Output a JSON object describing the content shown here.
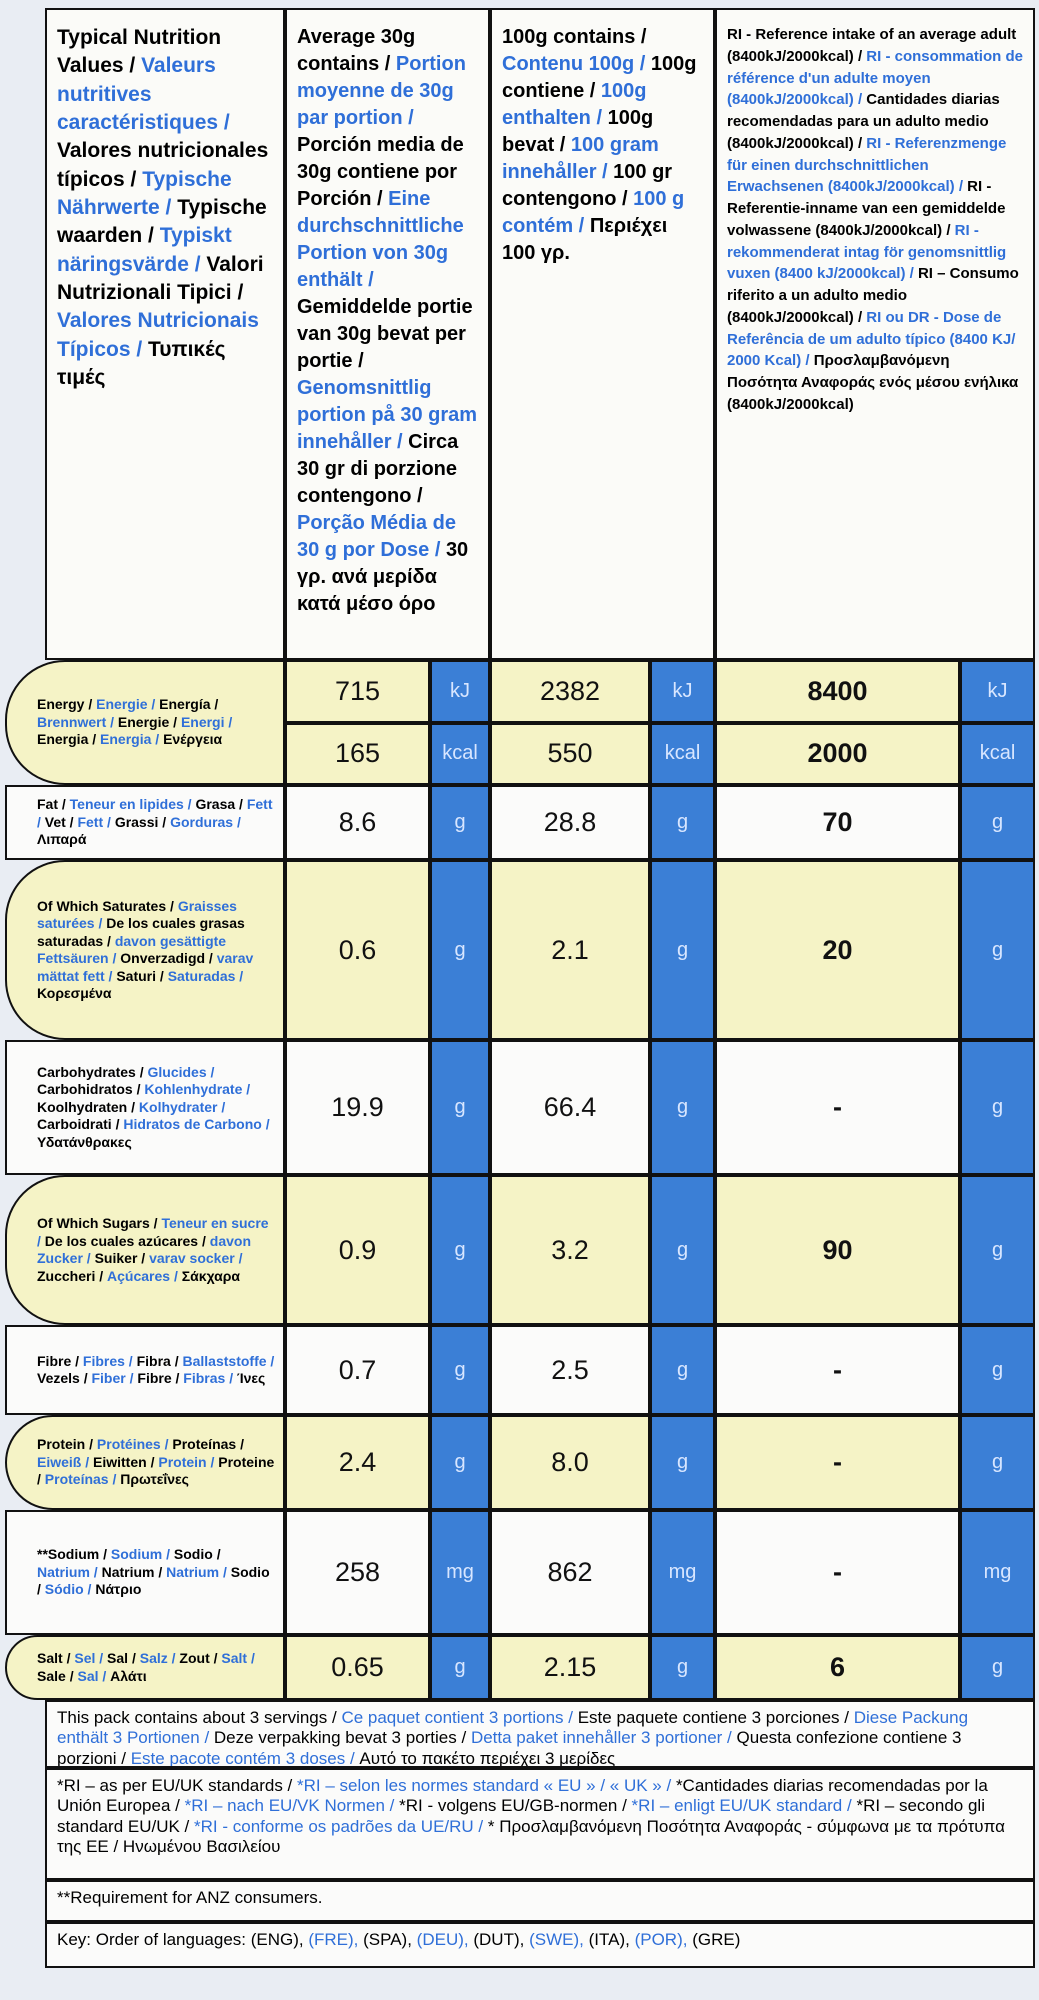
{
  "header": {
    "columns": [
      [
        "Typical Nutrition Values /",
        "Valeurs nutritives caractéristiques /",
        "Valores nutricionales típicos /",
        "Typische Nährwerte /",
        "Typische waarden /",
        "Typiskt näringsvärde /",
        "Valori Nutrizionali Tipici /",
        "Valores Nutricionais Típicos /",
        "Τυπικές τιμές"
      ],
      [
        "Average 30g contains /",
        "Portion moyenne de 30g par portion /",
        "Porción media de 30g contiene por Porción /",
        "Eine durchschnittliche Portion von 30g enthält /",
        "Gemiddelde portie van 30g bevat per portie /",
        "Genomsnittlig portion på 30 gram innehåller /",
        "Circa 30 gr di porzione contengono /",
        "Porção Média de 30 g por Dose /",
        "30 γρ. ανά μερίδα κατά μέσο όρο"
      ],
      [
        "100g contains /",
        "Contenu 100g /",
        "100g contiene /",
        "100g enthalten /",
        "100g bevat /",
        "100 gram innehåller /",
        "100 gr contengono /",
        "100 g contém /",
        "Περιέχει 100 γρ."
      ],
      [
        "RI - Reference intake of an average adult (8400kJ/2000kcal) /",
        "RI - consommation de référence d'un adulte moyen (8400kJ/2000kcal) /",
        "Cantidades diarias recomendadas para un adulto medio (8400kJ/2000kcal) /",
        "RI - Referenzmenge für einen durchschnittlichen Erwachsenen (8400kJ/2000kcal) /",
        "RI - Referentie-inname van een gemiddelde volwassene (8400kJ/2000kcal) /",
        "RI -rekommenderat intag för genomsnittlig vuxen (8400 kJ/2000kcal) /",
        "RI – Consumo riferito a un adulto medio (8400kJ/2000kcal) /",
        "RI ou DR - Dose de Referência de um adulto típico (8400 KJ/ 2000 Kcal) /",
        "Προσλαμβανόμενη Ποσότητα Αναφοράς ενός μέσου ενήλικα (8400kJ/2000kcal)"
      ]
    ]
  },
  "rows": [
    {
      "name": [
        "Energy /",
        "Energie /",
        "Energía /",
        "Brennwert /",
        "Energie /",
        "Energi /",
        "Energia /",
        "Energia /",
        "Ενέργεια"
      ],
      "lines": [
        [
          "715",
          "kJ",
          "2382",
          "kJ",
          "8400",
          "kJ"
        ],
        [
          "165",
          "kcal",
          "550",
          "kcal",
          "2000",
          "kcal"
        ]
      ]
    },
    {
      "name": [
        "Fat /",
        "Teneur en lipides /",
        "Grasa /",
        "Fett /",
        "Vet /",
        "Fett /",
        "Grassi /",
        "Gorduras /",
        "Λιπαρά"
      ],
      "lines": [
        [
          "8.6",
          "g",
          "28.8",
          "g",
          "70",
          "g"
        ]
      ]
    },
    {
      "name": [
        "Of Which Saturates /",
        "Graisses saturées /",
        "De los cuales grasas saturadas /",
        "davon gesättigte Fettsäuren /",
        "Onverzadigd /",
        "varav mättat fett /",
        "Saturi /",
        "Saturadas /",
        "Κορεσμένα"
      ],
      "lines": [
        [
          "0.6",
          "g",
          "2.1",
          "g",
          "20",
          "g"
        ]
      ]
    },
    {
      "name": [
        "Carbohydrates /",
        "Glucides /",
        "Carbohidratos /",
        "Kohlenhydrate /",
        "Koolhydraten /",
        "Kolhydrater /",
        "Carboidrati /",
        "Hidratos de Carbono /",
        "Υδατάνθρακες"
      ],
      "lines": [
        [
          "19.9",
          "g",
          "66.4",
          "g",
          "-",
          "g"
        ]
      ]
    },
    {
      "name": [
        "Of Which Sugars /",
        "Teneur en sucre /",
        "De los cuales azúcares /",
        "davon Zucker /",
        "Suiker /",
        "varav socker /",
        "Zuccheri /",
        "Açúcares /",
        "Σάκχαρα"
      ],
      "lines": [
        [
          "0.9",
          "g",
          "3.2",
          "g",
          "90",
          "g"
        ]
      ]
    },
    {
      "name": [
        "Fibre /",
        "Fibres /",
        "Fibra /",
        "Ballaststoffe /",
        "Vezels /",
        "Fiber /",
        "Fibre /",
        "Fibras /",
        "Ίνες"
      ],
      "lines": [
        [
          "0.7",
          "g",
          "2.5",
          "g",
          "-",
          "g"
        ]
      ]
    },
    {
      "name": [
        "Protein /",
        "Protéines /",
        "Proteínas /",
        "Eiweiß /",
        "Eiwitten /",
        "Protein /",
        "Proteine /",
        "Proteínas /",
        "Πρωτεΐνες"
      ],
      "lines": [
        [
          "2.4",
          "g",
          "8.0",
          "g",
          "-",
          "g"
        ]
      ]
    },
    {
      "name": [
        "**Sodium /",
        "Sodium /",
        "Sodio /",
        "Natrium /",
        "Natrium /",
        "Natrium /",
        "Sodio /",
        "Sódio /",
        "Νάτριο"
      ],
      "lines": [
        [
          "258",
          "mg",
          "862",
          "mg",
          "-",
          "mg"
        ]
      ]
    },
    {
      "name": [
        "Salt /",
        "Sel /",
        "Sal /",
        "Salz /",
        "Zout /",
        "Salt /",
        "Sale /",
        "Sal /",
        "Αλάτι"
      ],
      "lines": [
        [
          "0.65",
          "g",
          "2.15",
          "g",
          "6",
          "g"
        ]
      ]
    }
  ],
  "notes": [
    [
      "This pack contains about 3 servings /",
      "Ce paquet contient 3 portions /",
      "Este paquete contiene 3 porciones /",
      "Diese Packung enthält 3 Portionen /",
      "Deze verpakking bevat 3 porties /",
      "Detta paket innehåller 3 portioner /",
      "Questa confezione contiene 3 porzioni /",
      "Este pacote contém 3 doses /",
      "Αυτό το πακέτο περιέχει 3 μερίδες"
    ],
    [
      "*RI – as per EU/UK standards /",
      "*RI – selon les normes standard « EU » / « UK » /",
      "*Cantidades diarias recomendadas por la Unión Europea /",
      "*RI – nach EU/VK Normen /",
      "*RI - volgens EU/GB-normen /",
      "*RI – enligt EU/UK standard /",
      "*RI – secondo gli standard EU/UK /",
      "*RI - conforme os padrões da UE/RU /",
      "* Προσλαμβανόμενη Ποσότητα Αναφοράς - σύμφωνα με τα πρότυπα της ΕΕ / Ηνωμένου Βασιλείου"
    ],
    [
      "**Requirement for ANZ consumers."
    ],
    [
      "Key: Order of languages: (ENG),",
      "(FRE),",
      "(SPA),",
      "(DEU),",
      "(DUT),",
      "(SWE),",
      "(ITA),",
      "(POR),",
      "(GRE)"
    ]
  ]
}
